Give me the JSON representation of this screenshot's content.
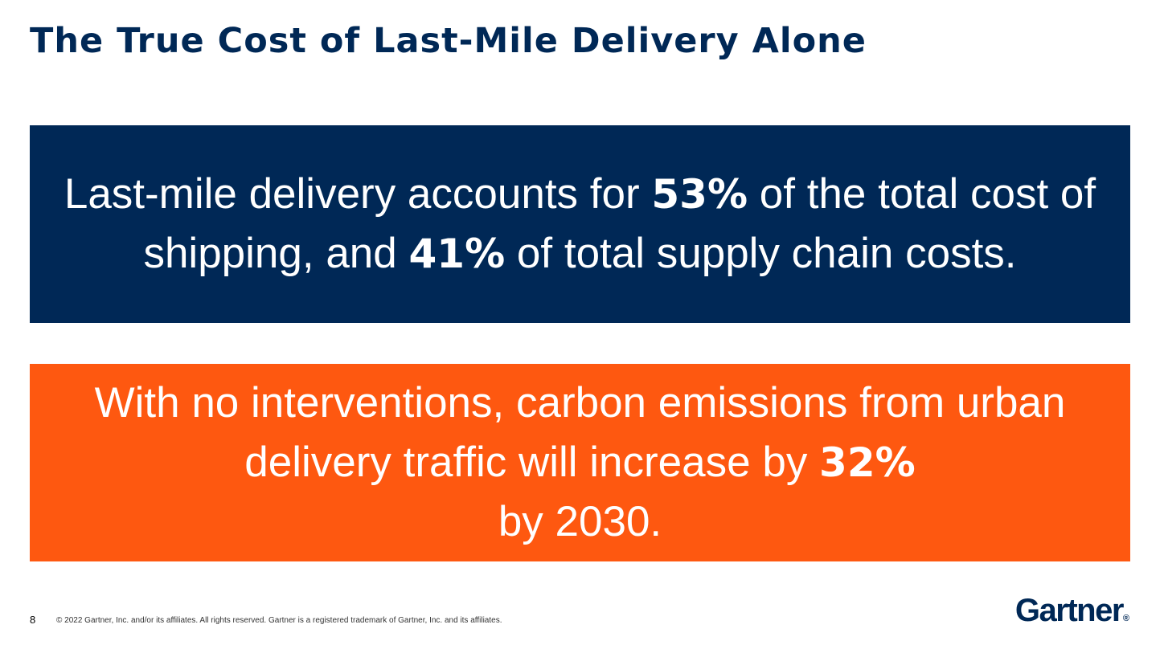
{
  "slide": {
    "title": "The True Cost of Last-Mile Delivery Alone",
    "page_number": "8",
    "copyright": "© 2022 Gartner, Inc. and/or its affiliates. All rights reserved. Gartner is a registered trademark of Gartner, Inc. and its affiliates.",
    "logo_text": "Gartner",
    "logo_mark": "®"
  },
  "callout_1": {
    "part_1": "Last-mile delivery accounts for ",
    "stat_1": "53%",
    "part_2": " of the total cost of shipping, and ",
    "stat_2": "41%",
    "part_3": " of total supply chain costs.",
    "background": "#002856"
  },
  "callout_2": {
    "part_1": "With no interventions, carbon emissions from urban delivery traffic will increase by ",
    "stat_1": "32%",
    "part_2": " by 2030.",
    "background": "#fe5810"
  },
  "colors": {
    "navy": "#002856",
    "orange": "#fe5810"
  }
}
